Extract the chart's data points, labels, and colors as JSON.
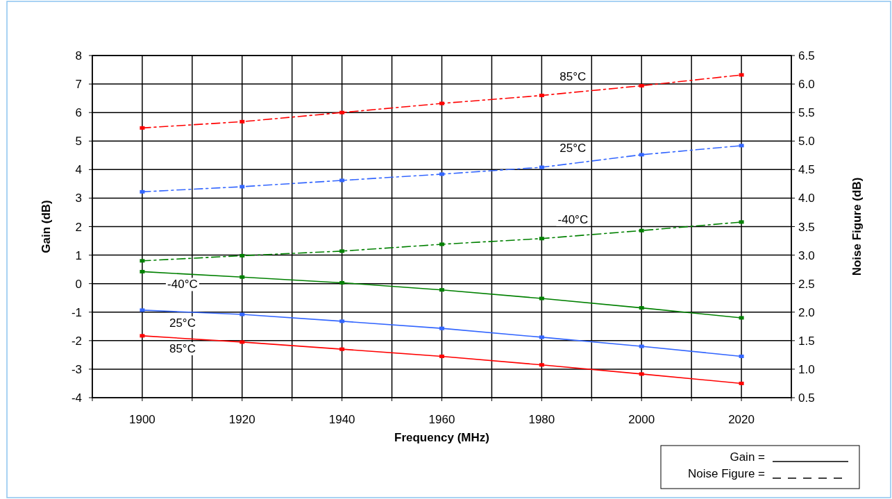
{
  "chart_data": {
    "type": "line",
    "xlabel": "Frequency (MHz)",
    "ylabel": "Gain (dB)",
    "y2label": "Noise Figure (dB)",
    "x": [
      1900,
      1920,
      1940,
      1960,
      1980,
      2000,
      2020
    ],
    "xlim": [
      1890,
      2030
    ],
    "xticks": [
      {
        "value": 1890,
        "label": null
      },
      1900,
      {
        "value": 1910,
        "label": null
      },
      1920,
      {
        "value": 1930,
        "label": null
      },
      1940,
      {
        "value": 1950,
        "label": null
      },
      1960,
      {
        "value": 1970,
        "label": null
      },
      1980,
      {
        "value": 1990,
        "label": null
      },
      2000,
      {
        "value": 2010,
        "label": null
      },
      2020,
      {
        "value": 2030,
        "label": null
      }
    ],
    "ylim": [
      -4,
      8
    ],
    "yticks": [
      -4,
      -3,
      -2,
      -1,
      0,
      1,
      2,
      3,
      4,
      5,
      6,
      7,
      8
    ],
    "y2lim": [
      0.5,
      6.5
    ],
    "y2ticks": [
      {
        "value": 0.5,
        "label": "0.5"
      },
      {
        "value": 1,
        "label": "1.0"
      },
      {
        "value": 1.5,
        "label": "1.5"
      },
      {
        "value": 2,
        "label": "2.0"
      },
      {
        "value": 2.5,
        "label": "2.5"
      },
      {
        "value": 3,
        "label": "3.0"
      },
      {
        "value": 3.5,
        "label": "3.5"
      },
      {
        "value": 4,
        "label": "4.0"
      },
      {
        "value": 4.5,
        "label": "4.5"
      },
      {
        "value": 5,
        "label": "5.0"
      },
      {
        "value": 5.5,
        "label": "5.5"
      },
      {
        "value": 6,
        "label": "6.0"
      },
      {
        "value": 6.5,
        "label": "6.5"
      }
    ],
    "grid": true,
    "marker": "square",
    "series": [
      {
        "name": "-40°C",
        "color": "#008000",
        "line_style": "solid",
        "values": [
          0.42,
          0.23,
          0.03,
          -0.22,
          -0.52,
          -0.85,
          -1.2
        ]
      },
      {
        "name": "25°C",
        "color": "#3366ff",
        "line_style": "solid",
        "values": [
          -0.93,
          -1.08,
          -1.32,
          -1.57,
          -1.88,
          -2.2,
          -2.55
        ]
      },
      {
        "name": "85°C",
        "color": "#ff0000",
        "line_style": "solid",
        "values": [
          -1.83,
          -2.05,
          -2.3,
          -2.55,
          -2.85,
          -3.17,
          -3.5
        ]
      },
      {
        "name": "85°C",
        "color": "#ff0000",
        "line_style": "dashed",
        "axis": "y2",
        "values": [
          5.23,
          5.34,
          5.5,
          5.66,
          5.8,
          5.97,
          6.16
        ]
      },
      {
        "name": "25°C",
        "color": "#3366ff",
        "line_style": "dashed",
        "axis": "y2",
        "values": [
          4.11,
          4.2,
          4.31,
          4.42,
          4.54,
          4.76,
          4.92
        ]
      },
      {
        "name": "-40°C",
        "color": "#008000",
        "line_style": "dashed",
        "axis": "y2",
        "values": [
          2.9,
          2.99,
          3.07,
          3.19,
          3.29,
          3.43,
          3.58
        ]
      }
    ],
    "annotations": [
      "Gain =",
      "Noise Figure ="
    ]
  }
}
